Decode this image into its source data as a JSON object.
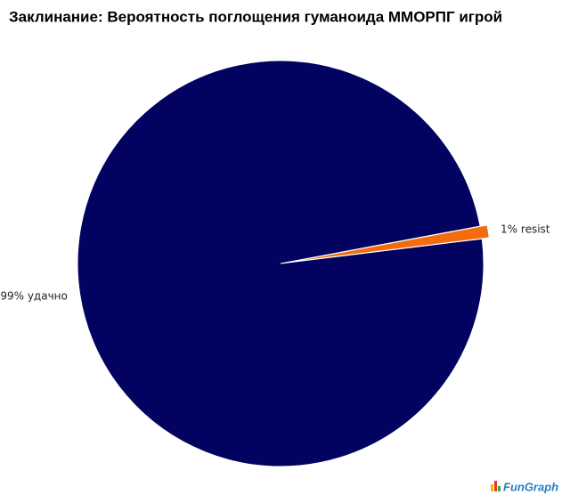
{
  "chart_data": {
    "type": "pie",
    "title": "Заклинание: Вероятность поглощения гуманоида ММОРПГ игрой",
    "values": [
      99,
      1
    ],
    "value_labels": [
      "99% удачно",
      "1% resist"
    ],
    "colors": [
      "#020260",
      "#f26b0f"
    ],
    "exploded": [
      false,
      true
    ],
    "watermark": "FunGraph"
  }
}
